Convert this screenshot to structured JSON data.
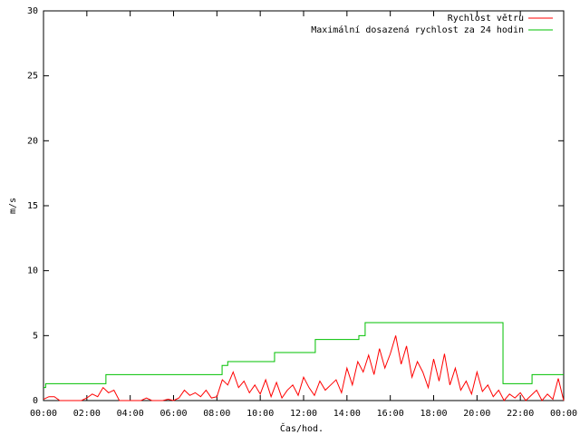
{
  "chart_data": {
    "type": "line",
    "xlabel": "Čas/hod.",
    "ylabel": "m/s",
    "xlim": [
      0,
      24
    ],
    "ylim": [
      0,
      30
    ],
    "xticks": [
      {
        "value": 0,
        "label": "00:00"
      },
      {
        "value": 2,
        "label": "02:00"
      },
      {
        "value": 4,
        "label": "04:00"
      },
      {
        "value": 6,
        "label": "06:00"
      },
      {
        "value": 8,
        "label": "08:00"
      },
      {
        "value": 10,
        "label": "10:00"
      },
      {
        "value": 12,
        "label": "12:00"
      },
      {
        "value": 14,
        "label": "14:00"
      },
      {
        "value": 16,
        "label": "16:00"
      },
      {
        "value": 18,
        "label": "18:00"
      },
      {
        "value": 20,
        "label": "20:00"
      },
      {
        "value": 22,
        "label": "22:00"
      },
      {
        "value": 24,
        "label": "00:00"
      }
    ],
    "yticks": [
      0,
      5,
      10,
      15,
      20,
      25,
      30
    ],
    "grid": false,
    "legend": "top-right",
    "series": [
      {
        "name": "Rychlost větru",
        "color": "#ff0000",
        "x": [
          0,
          0.25,
          0.5,
          0.75,
          1,
          1.25,
          1.5,
          1.75,
          2,
          2.25,
          2.5,
          2.75,
          3,
          3.25,
          3.5,
          3.75,
          4,
          4.25,
          4.5,
          4.75,
          5,
          5.25,
          5.5,
          5.75,
          6,
          6.25,
          6.5,
          6.75,
          7,
          7.25,
          7.5,
          7.75,
          8,
          8.25,
          8.5,
          8.75,
          9,
          9.25,
          9.5,
          9.75,
          10,
          10.25,
          10.5,
          10.75,
          11,
          11.25,
          11.5,
          11.75,
          12,
          12.25,
          12.5,
          12.75,
          13,
          13.25,
          13.5,
          13.75,
          14,
          14.25,
          14.5,
          14.75,
          15,
          15.25,
          15.5,
          15.75,
          16,
          16.25,
          16.5,
          16.75,
          17,
          17.25,
          17.5,
          17.75,
          18,
          18.25,
          18.5,
          18.75,
          19,
          19.25,
          19.5,
          19.75,
          20,
          20.25,
          20.5,
          20.75,
          21,
          21.25,
          21.5,
          21.75,
          22,
          22.25,
          22.5,
          22.75,
          23,
          23.25,
          23.5,
          23.75,
          24
        ],
        "values": [
          0.1,
          0.3,
          0.3,
          0,
          0,
          0,
          0,
          0,
          0.2,
          0.5,
          0.3,
          1.0,
          0.6,
          0.8,
          0,
          0,
          0,
          0,
          0,
          0.2,
          0,
          0,
          0,
          0.1,
          0,
          0.2,
          0.8,
          0.4,
          0.6,
          0.3,
          0.8,
          0.2,
          0.3,
          1.6,
          1.2,
          2.2,
          1.0,
          1.5,
          0.6,
          1.2,
          0.5,
          1.6,
          0.3,
          1.4,
          0.2,
          0.8,
          1.2,
          0.4,
          1.8,
          1.0,
          0.4,
          1.5,
          0.8,
          1.2,
          1.6,
          0.6,
          2.5,
          1.2,
          3.0,
          2.2,
          3.5,
          2.0,
          4.0,
          2.5,
          3.6,
          5.0,
          2.8,
          4.2,
          1.8,
          3.0,
          2.2,
          1.0,
          3.2,
          1.5,
          3.6,
          1.2,
          2.5,
          0.8,
          1.5,
          0.5,
          2.2,
          0.7,
          1.2,
          0.3,
          0.8,
          0,
          0.5,
          0.2,
          0.6,
          0,
          0.4,
          0.8,
          0,
          0.5,
          0.1,
          1.7,
          0
        ]
      },
      {
        "name": "Maximální dosazená rychlost za 24 hodin",
        "color": "#00c000",
        "x": [
          0,
          0.1,
          0.1,
          2.88,
          2.88,
          8.24,
          8.24,
          8.5,
          8.5,
          10.66,
          10.66,
          12.54,
          12.54,
          14.55,
          14.55,
          14.84,
          14.84,
          21.2,
          21.2,
          22.54,
          22.54,
          24
        ],
        "values": [
          1.0,
          1.0,
          1.3,
          1.3,
          2.0,
          2.0,
          2.7,
          2.7,
          3.0,
          3.0,
          3.7,
          3.7,
          4.7,
          4.7,
          5.0,
          5.0,
          6.0,
          6.0,
          1.3,
          1.3,
          2.0,
          2.0
        ]
      }
    ]
  }
}
